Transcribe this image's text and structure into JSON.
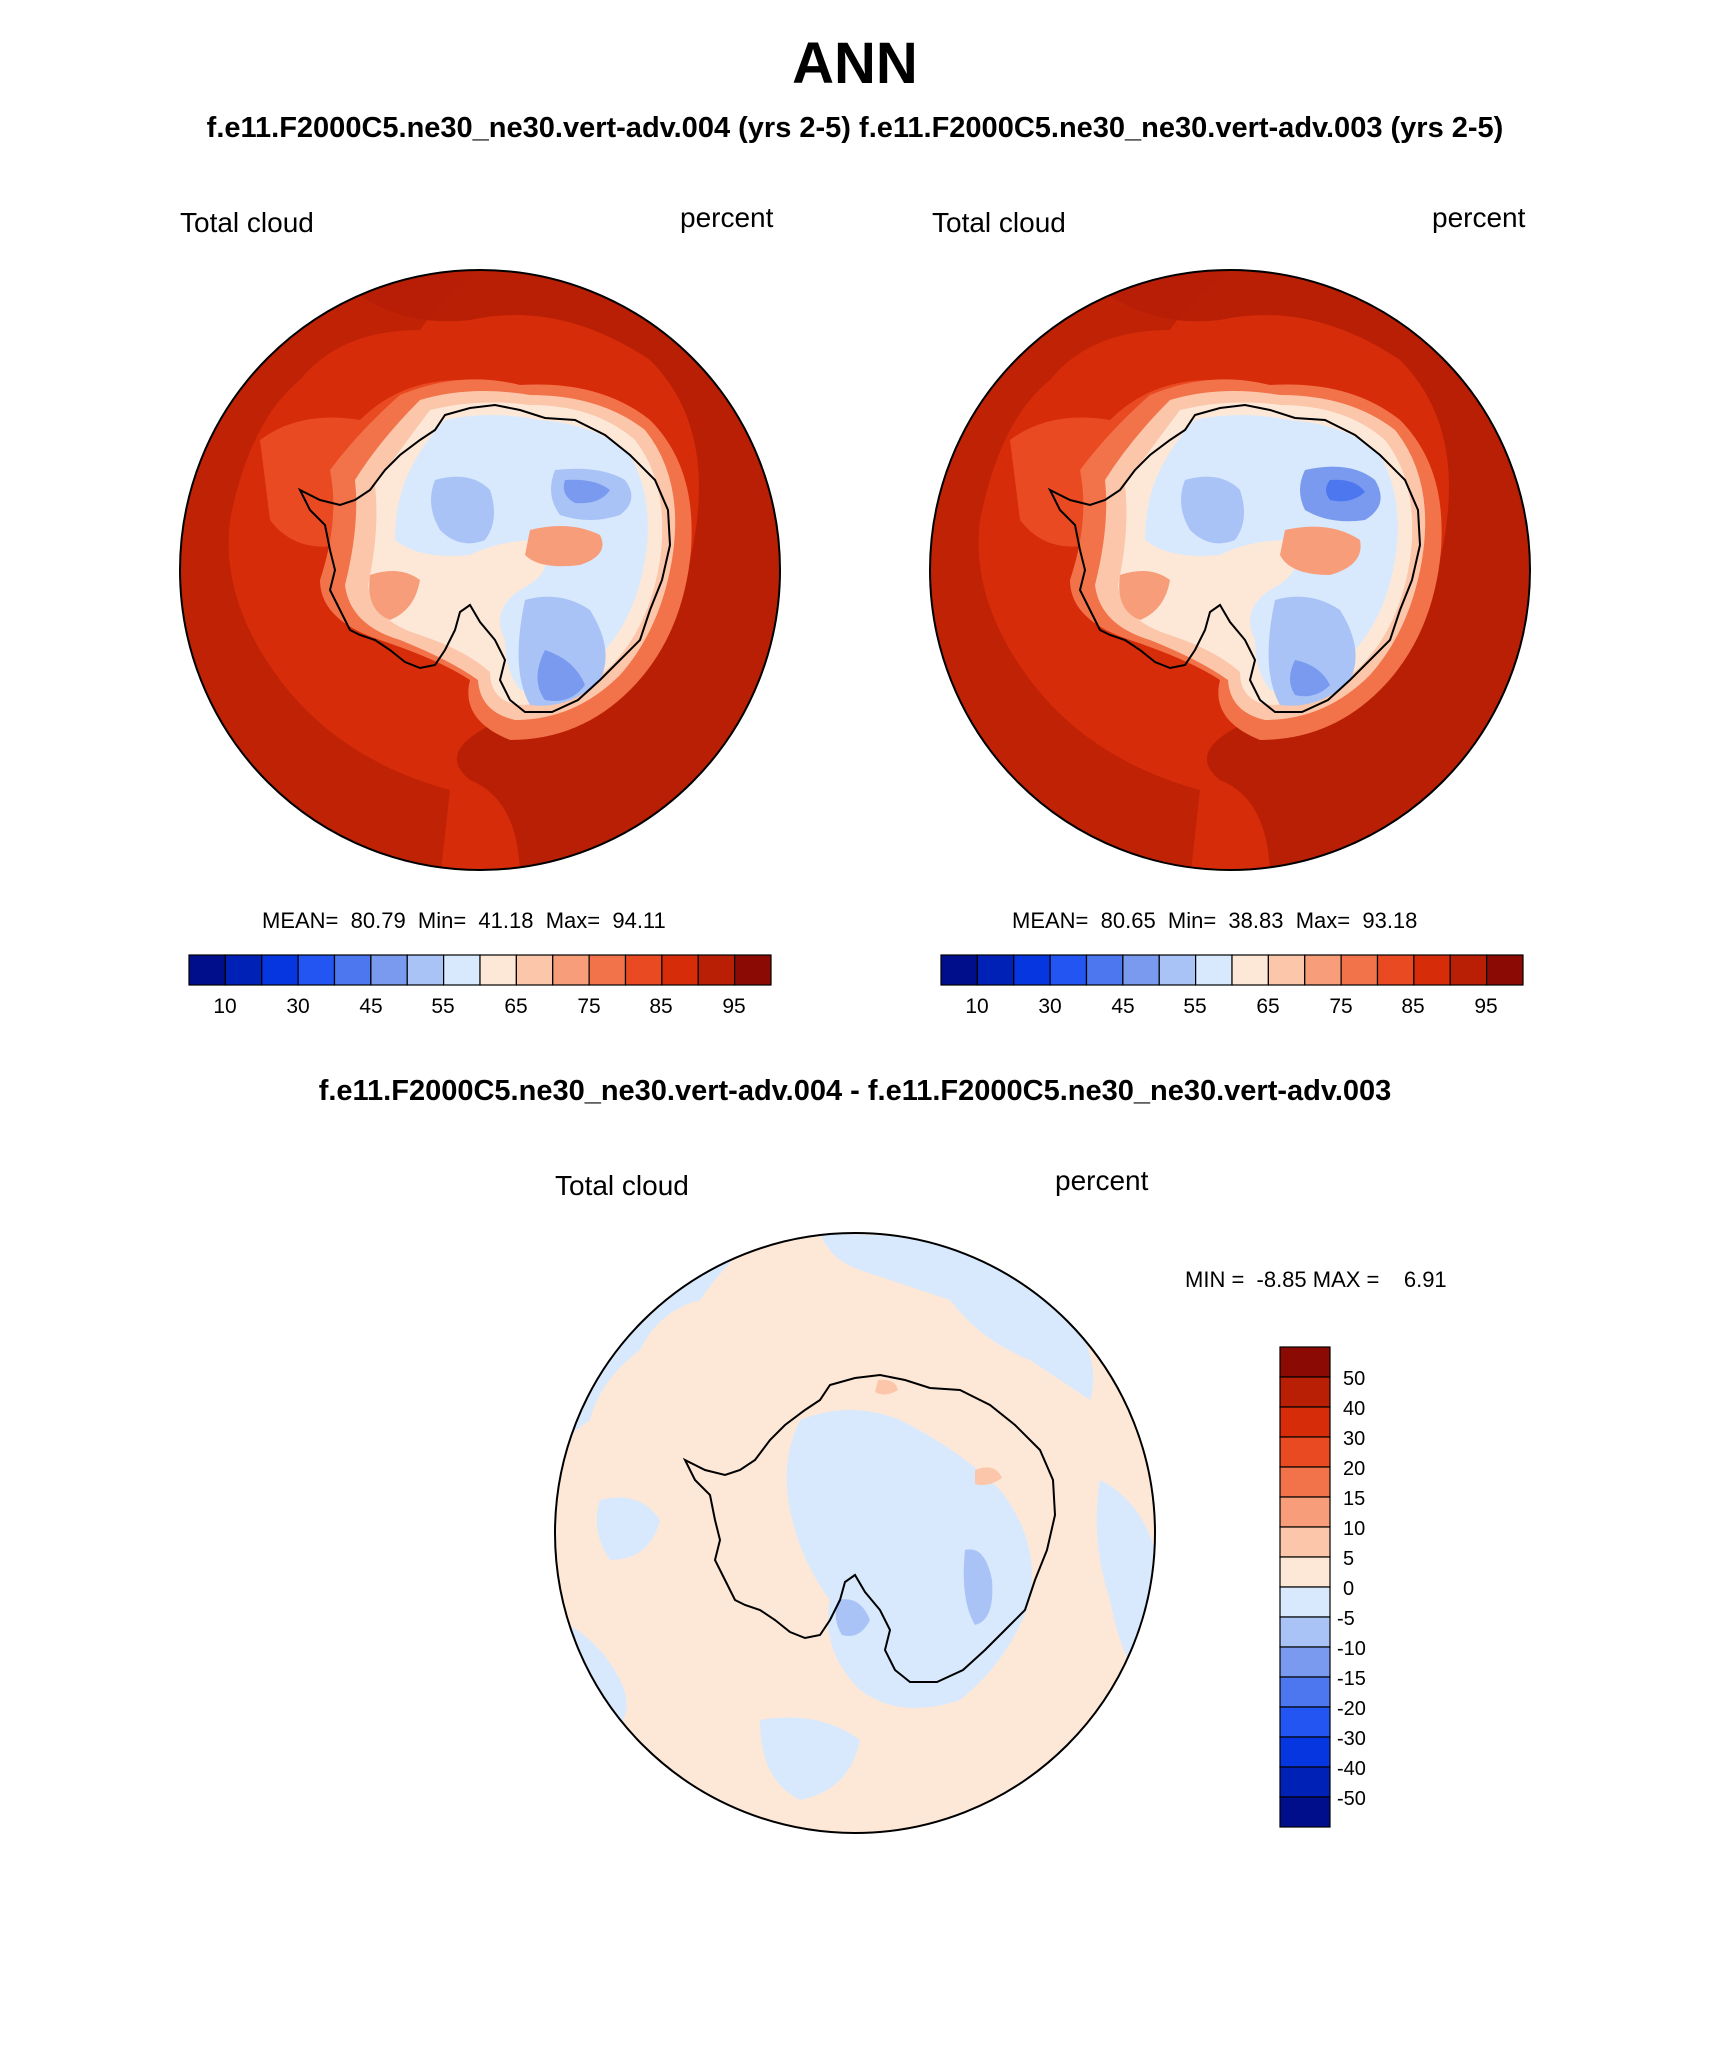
{
  "main_title": "ANN",
  "top_subtitle_left": "f.e11.F2000C5.ne30_ne30.vert-adv.004 (yrs 2-5)",
  "top_subtitle_right": "f.e11.F2000C5.ne30_ne30.vert-adv.003 (yrs 2-5)",
  "diff_title": "f.e11.F2000C5.ne30_ne30.vert-adv.004 - f.e11.F2000C5.ne30_ne30.vert-adv.003",
  "panels": [
    {
      "variable": "Total cloud",
      "units": "percent",
      "stats": "MEAN=  80.79  Min=  41.18  Max=  94.11",
      "mean": 80.79,
      "min": 41.18,
      "max": 94.11
    },
    {
      "variable": "Total cloud",
      "units": "percent",
      "stats": "MEAN=  80.65  Min=  38.83  Max=  93.18",
      "mean": 80.65,
      "min": 38.83,
      "max": 93.18
    }
  ],
  "diff_panel": {
    "variable": "Total cloud",
    "units": "percent",
    "stats": "MIN =  -8.85 MAX =    6.91",
    "min": -8.85,
    "max": 6.91
  },
  "colorbar_main": {
    "tick_labels": [
      "10",
      "30",
      "45",
      "55",
      "65",
      "75",
      "85",
      "95"
    ],
    "colors": [
      "#000e8c",
      "#0021b5",
      "#0536e0",
      "#2255f2",
      "#4c77ee",
      "#7a9af0",
      "#a9c3f7",
      "#d8e9fd",
      "#fde8d8",
      "#fbc6aa",
      "#f79d7a",
      "#f2734a",
      "#ea4a22",
      "#d62c09",
      "#b81f05",
      "#8b0a04"
    ]
  },
  "colorbar_diff": {
    "tick_labels": [
      "50",
      "40",
      "30",
      "20",
      "15",
      "10",
      "5",
      "0",
      "-5",
      "-10",
      "-15",
      "-20",
      "-30",
      "-40",
      "-50"
    ],
    "colors": [
      "#8b0a04",
      "#b81f05",
      "#d62c09",
      "#ea4a22",
      "#f2734a",
      "#f79d7a",
      "#fbc6aa",
      "#fde8d8",
      "#d8e9fd",
      "#a9c3f7",
      "#7a9af0",
      "#4c77ee",
      "#2255f2",
      "#0536e0",
      "#0021b5",
      "#000e8c"
    ]
  }
}
